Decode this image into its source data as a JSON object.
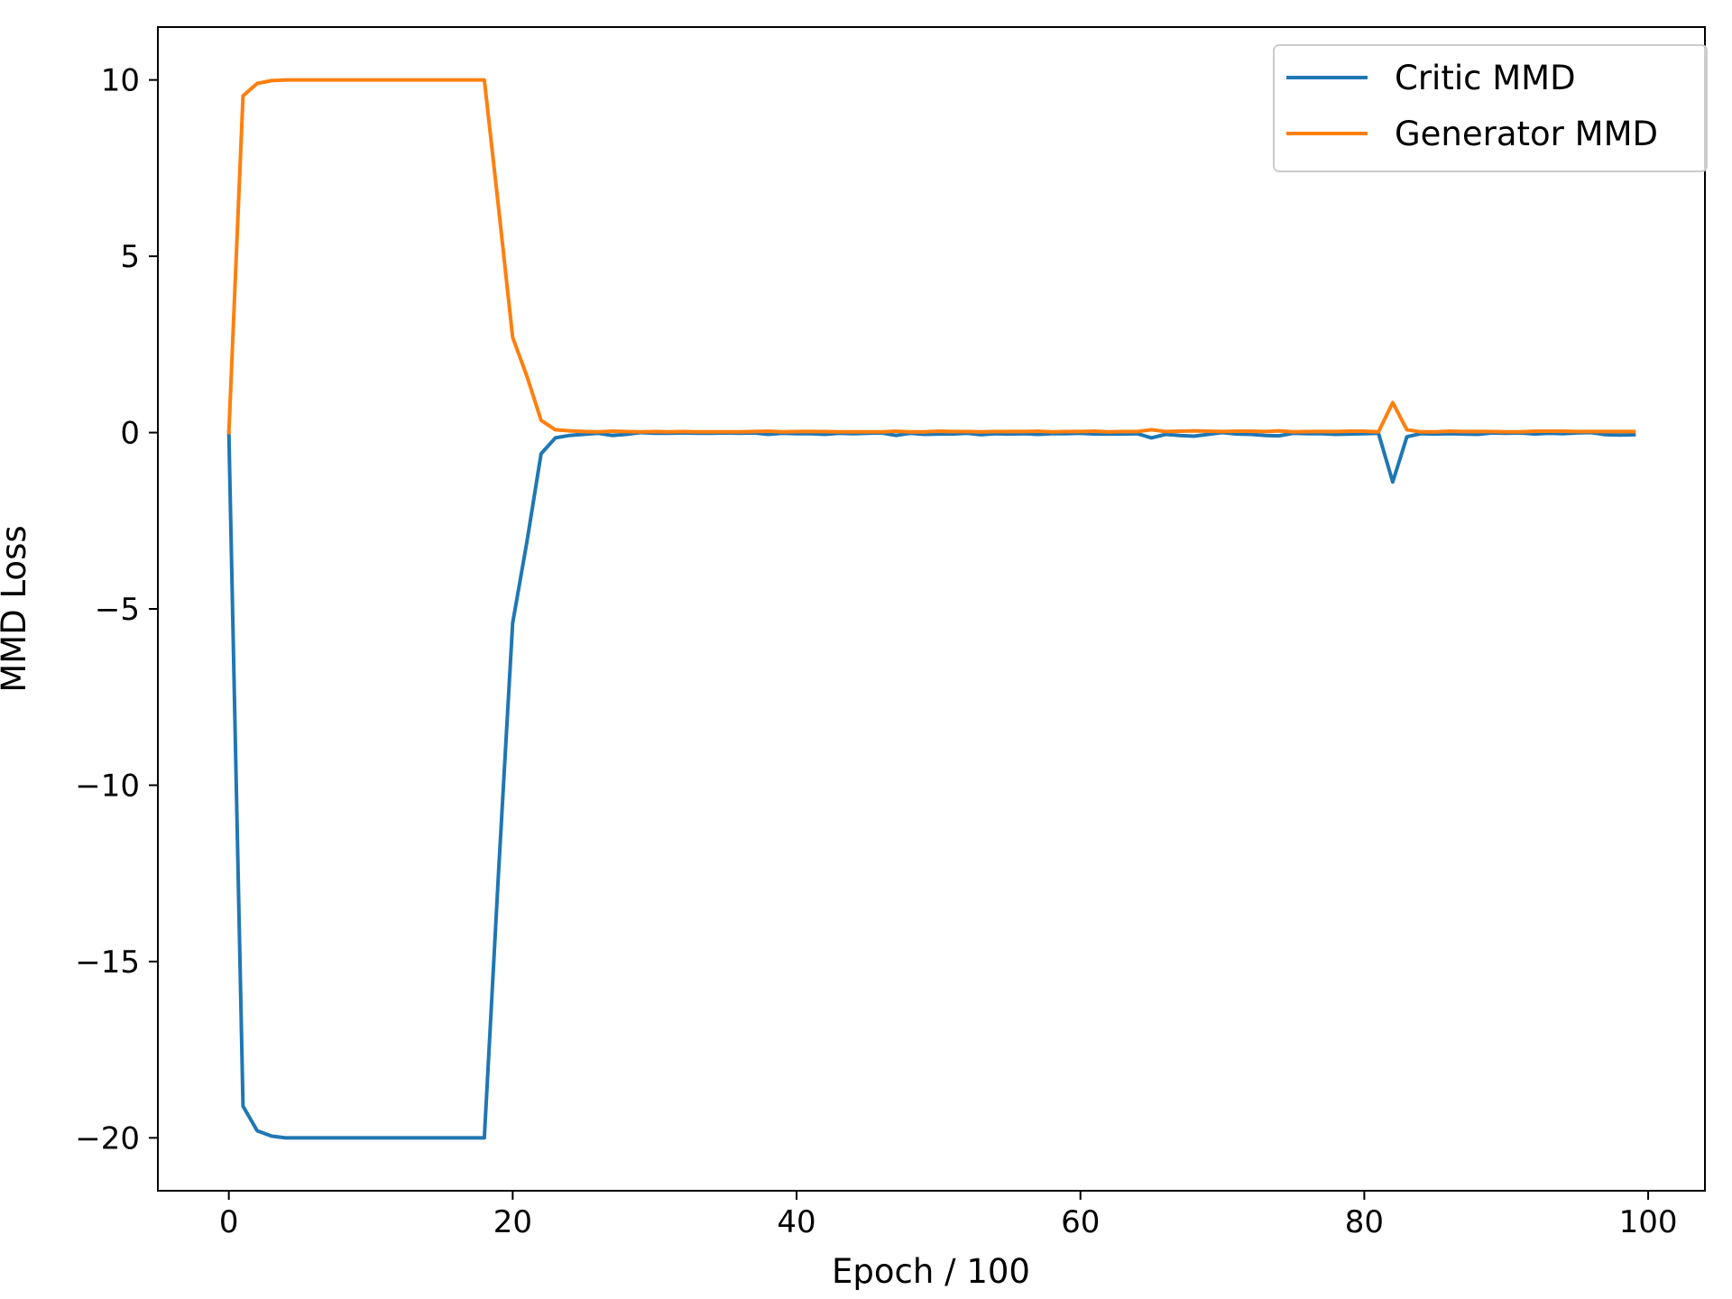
{
  "chart_data": {
    "type": "line",
    "title": "",
    "xlabel": "Epoch / 100",
    "ylabel": "MMD Loss",
    "xlim": [
      -5,
      104
    ],
    "ylim": [
      -21.5,
      11.5
    ],
    "xticks": [
      0,
      20,
      40,
      60,
      80,
      100
    ],
    "xtick_labels": [
      "0",
      "20",
      "40",
      "60",
      "80",
      "100"
    ],
    "yticks": [
      10,
      5,
      0,
      -5,
      -10,
      -15,
      -20
    ],
    "ytick_labels": [
      "10",
      "5",
      "0",
      "−5",
      "−10",
      "−15",
      "−20"
    ],
    "grid": false,
    "legend_position": "top-right",
    "series": [
      {
        "name": "Critic MMD",
        "color": "#1f77b4",
        "x": [
          0,
          1,
          2,
          3,
          4,
          5,
          6,
          7,
          8,
          9,
          10,
          11,
          12,
          13,
          14,
          15,
          16,
          17,
          18,
          19,
          20,
          21,
          22,
          23,
          24,
          25,
          26,
          27,
          28,
          29,
          30,
          31,
          32,
          33,
          34,
          35,
          36,
          37,
          38,
          39,
          40,
          41,
          42,
          43,
          44,
          45,
          46,
          47,
          48,
          49,
          50,
          51,
          52,
          53,
          54,
          55,
          56,
          57,
          58,
          59,
          60,
          61,
          62,
          63,
          64,
          65,
          66,
          67,
          68,
          69,
          70,
          71,
          72,
          73,
          74,
          75,
          76,
          77,
          78,
          79,
          80,
          81,
          82,
          83,
          84,
          85,
          86,
          87,
          88,
          89,
          90,
          91,
          92,
          93,
          94,
          95,
          96,
          97,
          98,
          99
        ],
        "values": [
          0,
          -19.1,
          -19.8,
          -19.95,
          -20,
          -20,
          -20,
          -20,
          -20,
          -20,
          -20,
          -20,
          -20,
          -20,
          -20,
          -20,
          -20,
          -20,
          -20,
          -12.5,
          -5.4,
          -3.1,
          -0.6,
          -0.15,
          -0.08,
          -0.05,
          -0.02,
          -0.08,
          -0.05,
          0,
          -0.02,
          -0.02,
          -0.01,
          -0.02,
          -0.02,
          -0.01,
          -0.02,
          -0.01,
          -0.05,
          -0.02,
          -0.03,
          -0.03,
          -0.05,
          -0.02,
          -0.03,
          -0.02,
          -0.01,
          -0.08,
          -0.02,
          -0.05,
          -0.04,
          -0.04,
          -0.02,
          -0.06,
          -0.03,
          -0.04,
          -0.03,
          -0.05,
          -0.03,
          -0.03,
          -0.02,
          -0.04,
          -0.04,
          -0.04,
          -0.03,
          -0.15,
          -0.05,
          -0.08,
          -0.1,
          -0.05,
          0,
          -0.04,
          -0.05,
          -0.08,
          -0.09,
          -0.02,
          -0.03,
          -0.03,
          -0.05,
          -0.04,
          -0.03,
          -0.02,
          -1.4,
          -0.12,
          -0.03,
          -0.04,
          -0.03,
          -0.04,
          -0.05,
          -0.01,
          -0.02,
          -0.01,
          -0.04,
          -0.02,
          -0.03,
          -0.01,
          0,
          -0.06,
          -0.07,
          -0.06
        ]
      },
      {
        "name": "Generator MMD",
        "color": "#ff7f0e",
        "x": [
          0,
          1,
          2,
          3,
          4,
          5,
          6,
          7,
          8,
          9,
          10,
          11,
          12,
          13,
          14,
          15,
          16,
          17,
          18,
          19,
          20,
          21,
          22,
          23,
          24,
          25,
          26,
          27,
          28,
          29,
          30,
          31,
          32,
          33,
          34,
          35,
          36,
          37,
          38,
          39,
          40,
          41,
          42,
          43,
          44,
          45,
          46,
          47,
          48,
          49,
          50,
          51,
          52,
          53,
          54,
          55,
          56,
          57,
          58,
          59,
          60,
          61,
          62,
          63,
          64,
          65,
          66,
          67,
          68,
          69,
          70,
          71,
          72,
          73,
          74,
          75,
          76,
          77,
          78,
          79,
          80,
          81,
          82,
          83,
          84,
          85,
          86,
          87,
          88,
          89,
          90,
          91,
          92,
          93,
          94,
          95,
          96,
          97,
          98,
          99
        ],
        "values": [
          0,
          9.55,
          9.9,
          9.98,
          10,
          10,
          10,
          10,
          10,
          10,
          10,
          10,
          10,
          10,
          10,
          10,
          10,
          10,
          10,
          6.4,
          2.7,
          1.6,
          0.35,
          0.08,
          0.05,
          0.03,
          0.02,
          0.04,
          0.03,
          0.02,
          0.03,
          0.02,
          0.03,
          0.02,
          0.02,
          0.02,
          0.02,
          0.03,
          0.04,
          0.02,
          0.03,
          0.03,
          0.03,
          0.02,
          0.02,
          0.02,
          0.02,
          0.04,
          0.02,
          0.02,
          0.04,
          0.03,
          0.03,
          0.02,
          0.03,
          0.03,
          0.03,
          0.04,
          0.02,
          0.03,
          0.03,
          0.04,
          0.02,
          0.03,
          0.03,
          0.08,
          0.03,
          0.04,
          0.05,
          0.04,
          0.03,
          0.04,
          0.04,
          0.03,
          0.05,
          0.02,
          0.03,
          0.03,
          0.03,
          0.04,
          0.04,
          0.02,
          0.85,
          0.08,
          0.02,
          0.02,
          0.04,
          0.03,
          0.03,
          0.03,
          0.02,
          0.02,
          0.04,
          0.04,
          0.04,
          0.03,
          0.03,
          0.03,
          0.03,
          0.03
        ]
      }
    ]
  }
}
